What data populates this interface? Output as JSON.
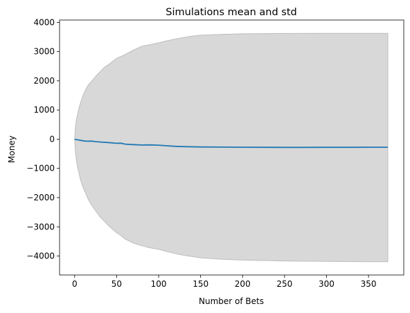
{
  "chart_data": {
    "type": "area",
    "title": "Simulations mean and std",
    "xlabel": "Number of Bets",
    "ylabel": "Money",
    "xlim": [
      -18,
      392
    ],
    "ylim": [
      -4650,
      4080
    ],
    "xticks": [
      0,
      50,
      100,
      150,
      200,
      250,
      300,
      350
    ],
    "yticks": [
      -4000,
      -3000,
      -2000,
      -1000,
      0,
      1000,
      2000,
      3000,
      4000
    ],
    "grid": false,
    "legend": "none",
    "series": [
      {
        "kind": "line",
        "color": "#1f77b4",
        "x": [
          0,
          3,
          6,
          10,
          15,
          20,
          25,
          30,
          40,
          50,
          55,
          60,
          70,
          80,
          90,
          100,
          110,
          120,
          130,
          150,
          175,
          200,
          225,
          250,
          275,
          300,
          325,
          350,
          373
        ],
        "y": [
          0,
          -20,
          -35,
          -55,
          -70,
          -65,
          -85,
          -95,
          -115,
          -140,
          -135,
          -170,
          -185,
          -200,
          -195,
          -205,
          -225,
          -245,
          -255,
          -265,
          -270,
          -275,
          -278,
          -280,
          -280,
          -278,
          -278,
          -276,
          -275
        ]
      },
      {
        "kind": "band",
        "color": "#d8d8d8",
        "edge_color": "#bdbdbd",
        "x": [
          0,
          1,
          2,
          3,
          5,
          7,
          10,
          13,
          16,
          20,
          25,
          30,
          35,
          40,
          45,
          50,
          55,
          60,
          70,
          80,
          90,
          100,
          110,
          125,
          140,
          150,
          175,
          200,
          250,
          300,
          350,
          373
        ],
        "upper": [
          0,
          450,
          650,
          800,
          1050,
          1250,
          1500,
          1700,
          1850,
          1980,
          2150,
          2300,
          2450,
          2550,
          2660,
          2770,
          2830,
          2900,
          3050,
          3180,
          3240,
          3300,
          3370,
          3460,
          3530,
          3560,
          3590,
          3610,
          3620,
          3625,
          3625,
          3625
        ],
        "lower": [
          0,
          -450,
          -700,
          -900,
          -1150,
          -1400,
          -1650,
          -1850,
          -2050,
          -2250,
          -2450,
          -2650,
          -2800,
          -2950,
          -3080,
          -3200,
          -3300,
          -3420,
          -3560,
          -3650,
          -3720,
          -3770,
          -3850,
          -3950,
          -4020,
          -4060,
          -4110,
          -4140,
          -4170,
          -4185,
          -4195,
          -4195
        ]
      }
    ]
  }
}
